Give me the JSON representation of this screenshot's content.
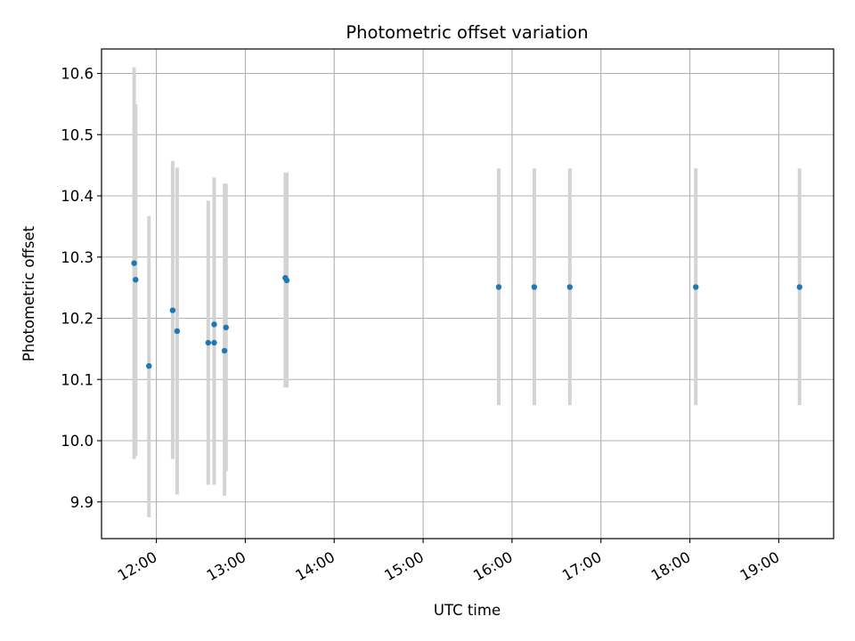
{
  "chart_data": {
    "type": "scatter",
    "title": "Photometric offset variation",
    "xlabel": "UTC time",
    "ylabel": "Photometric offset",
    "x_ticks": [
      "12:00",
      "13:00",
      "14:00",
      "15:00",
      "16:00",
      "17:00",
      "18:00",
      "19:00"
    ],
    "y_ticks": [
      "9.9",
      "10.0",
      "10.1",
      "10.2",
      "10.3",
      "10.4",
      "10.5",
      "10.6"
    ],
    "xlim": [
      "11:23",
      "19:37"
    ],
    "ylim": [
      9.84,
      10.64
    ],
    "grid": true,
    "point_color": "#1f77b4",
    "errorbar_color": "#d3d3d3",
    "points": [
      {
        "x": "11:45",
        "y": 10.29,
        "err_low": 9.97,
        "err_high": 10.61
      },
      {
        "x": "11:46",
        "y": 10.263,
        "err_low": 9.975,
        "err_high": 10.55
      },
      {
        "x": "11:55",
        "y": 10.122,
        "err_low": 9.875,
        "err_high": 10.367
      },
      {
        "x": "12:11",
        "y": 10.213,
        "err_low": 9.97,
        "err_high": 10.457
      },
      {
        "x": "12:14",
        "y": 10.179,
        "err_low": 9.912,
        "err_high": 10.446
      },
      {
        "x": "12:35",
        "y": 10.16,
        "err_low": 9.928,
        "err_high": 10.392
      },
      {
        "x": "12:39",
        "y": 10.16,
        "err_low": 9.928,
        "err_high": 10.392
      },
      {
        "x": "12:39",
        "y": 10.19,
        "err_low": 9.95,
        "err_high": 10.43
      },
      {
        "x": "12:46",
        "y": 10.147,
        "err_low": 9.91,
        "err_high": 10.42
      },
      {
        "x": "12:47",
        "y": 10.185,
        "err_low": 9.95,
        "err_high": 10.42
      },
      {
        "x": "13:27",
        "y": 10.266,
        "err_low": 10.087,
        "err_high": 10.438
      },
      {
        "x": "13:28",
        "y": 10.262,
        "err_low": 10.087,
        "err_high": 10.438
      },
      {
        "x": "15:51",
        "y": 10.251,
        "err_low": 10.058,
        "err_high": 10.445
      },
      {
        "x": "16:15",
        "y": 10.251,
        "err_low": 10.058,
        "err_high": 10.445
      },
      {
        "x": "16:39",
        "y": 10.251,
        "err_low": 10.058,
        "err_high": 10.445
      },
      {
        "x": "18:04",
        "y": 10.251,
        "err_low": 10.058,
        "err_high": 10.445
      },
      {
        "x": "19:14",
        "y": 10.251,
        "err_low": 10.058,
        "err_high": 10.445
      }
    ]
  }
}
